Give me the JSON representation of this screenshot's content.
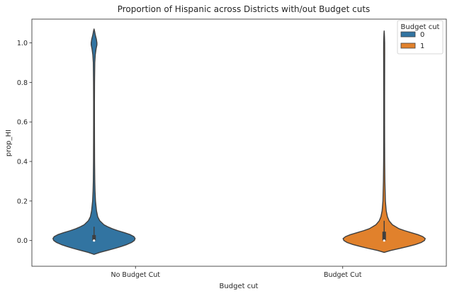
{
  "chart_data": {
    "type": "violin",
    "title": "Proportion of Hispanic across Districts with/out Budget cuts",
    "xlabel": "Budget cut",
    "ylabel": "prop_HI",
    "categories": [
      "No Budget Cut",
      "Budget Cut"
    ],
    "ylim": [
      -0.13,
      1.12
    ],
    "yticks": [
      {
        "value": 0.0,
        "label": "0.0"
      },
      {
        "value": 0.2,
        "label": "0.2"
      },
      {
        "value": 0.4,
        "label": "0.4"
      },
      {
        "value": 0.6,
        "label": "0.6"
      },
      {
        "value": 0.8,
        "label": "0.8"
      },
      {
        "value": 1.0,
        "label": "1.0"
      }
    ],
    "grid": false,
    "legend": {
      "title": "Budget cut",
      "placement": "top-right",
      "entries": [
        {
          "label": "0",
          "color": "#3274a1"
        },
        {
          "label": "1",
          "color": "#e1812c"
        }
      ]
    },
    "series": [
      {
        "hue": "0",
        "category": "No Budget Cut",
        "color": "#3274a1",
        "density": [
          [
            -0.07,
            0.0
          ],
          [
            -0.06,
            0.14
          ],
          [
            -0.05,
            0.32
          ],
          [
            -0.04,
            0.5
          ],
          [
            -0.03,
            0.66
          ],
          [
            -0.02,
            0.8
          ],
          [
            -0.01,
            0.91
          ],
          [
            0.0,
            0.98
          ],
          [
            0.01,
            1.0
          ],
          [
            0.02,
            0.97
          ],
          [
            0.03,
            0.88
          ],
          [
            0.04,
            0.74
          ],
          [
            0.05,
            0.58
          ],
          [
            0.06,
            0.44
          ],
          [
            0.07,
            0.33
          ],
          [
            0.08,
            0.24
          ],
          [
            0.1,
            0.14
          ],
          [
            0.12,
            0.09
          ],
          [
            0.15,
            0.06
          ],
          [
            0.2,
            0.035
          ],
          [
            0.25,
            0.024
          ],
          [
            0.3,
            0.018
          ],
          [
            0.4,
            0.013
          ],
          [
            0.5,
            0.011
          ],
          [
            0.6,
            0.01
          ],
          [
            0.7,
            0.01
          ],
          [
            0.8,
            0.012
          ],
          [
            0.9,
            0.018
          ],
          [
            0.94,
            0.03
          ],
          [
            0.97,
            0.05
          ],
          [
            0.99,
            0.07
          ],
          [
            1.0,
            0.07
          ],
          [
            1.02,
            0.055
          ],
          [
            1.04,
            0.03
          ],
          [
            1.06,
            0.012
          ],
          [
            1.07,
            0.0
          ]
        ],
        "box": {
          "q1": 0.0,
          "q3": 0.028,
          "whisker_low": 0.0,
          "whisker_high": 0.07,
          "median": 0.0
        }
      },
      {
        "hue": "1",
        "category": "Budget Cut",
        "color": "#e1812c",
        "density": [
          [
            -0.06,
            0.0
          ],
          [
            -0.05,
            0.16
          ],
          [
            -0.04,
            0.38
          ],
          [
            -0.03,
            0.58
          ],
          [
            -0.02,
            0.76
          ],
          [
            -0.01,
            0.9
          ],
          [
            0.0,
            0.98
          ],
          [
            0.01,
            1.0
          ],
          [
            0.02,
            0.94
          ],
          [
            0.03,
            0.82
          ],
          [
            0.04,
            0.66
          ],
          [
            0.05,
            0.5
          ],
          [
            0.06,
            0.36
          ],
          [
            0.08,
            0.2
          ],
          [
            0.1,
            0.12
          ],
          [
            0.12,
            0.08
          ],
          [
            0.15,
            0.05
          ],
          [
            0.2,
            0.03
          ],
          [
            0.3,
            0.018
          ],
          [
            0.4,
            0.013
          ],
          [
            0.5,
            0.011
          ],
          [
            0.6,
            0.01
          ],
          [
            0.7,
            0.01
          ],
          [
            0.8,
            0.011
          ],
          [
            0.9,
            0.012
          ],
          [
            0.95,
            0.013
          ],
          [
            1.0,
            0.012
          ],
          [
            1.03,
            0.008
          ],
          [
            1.05,
            0.004
          ],
          [
            1.06,
            0.0
          ]
        ],
        "box": {
          "q1": 0.0,
          "q3": 0.045,
          "whisker_low": 0.0,
          "whisker_high": 0.1,
          "median": 0.0
        }
      }
    ]
  }
}
